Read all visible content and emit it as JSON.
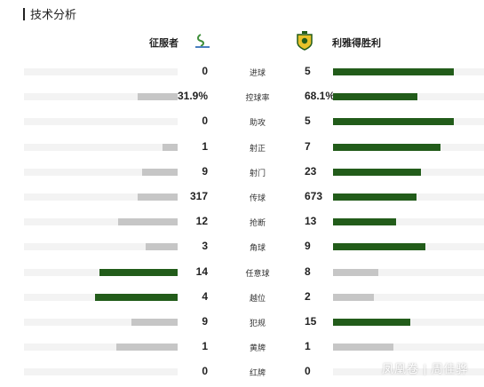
{
  "header": {
    "title": "技术分析"
  },
  "teams": {
    "home": {
      "name": "征服者"
    },
    "away": {
      "name": "利雅得胜利"
    }
  },
  "colors": {
    "green": "#225c1a",
    "grey": "#c6c6c6",
    "track": "#f3f3f3"
  },
  "stats": [
    {
      "label": "进球",
      "home": "0",
      "away": "5",
      "home_frac": 0.0,
      "away_frac": 0.8,
      "home_color": "grey",
      "away_color": "green"
    },
    {
      "label": "控球率",
      "home": "31.9%",
      "away": "68.1%",
      "home_frac": 0.26,
      "away_frac": 0.56,
      "home_color": "grey",
      "away_color": "green"
    },
    {
      "label": "助攻",
      "home": "0",
      "away": "5",
      "home_frac": 0.0,
      "away_frac": 0.8,
      "home_color": "grey",
      "away_color": "green"
    },
    {
      "label": "射正",
      "home": "1",
      "away": "7",
      "home_frac": 0.1,
      "away_frac": 0.71,
      "home_color": "grey",
      "away_color": "green"
    },
    {
      "label": "射门",
      "home": "9",
      "away": "23",
      "home_frac": 0.23,
      "away_frac": 0.58,
      "home_color": "grey",
      "away_color": "green"
    },
    {
      "label": "传球",
      "home": "317",
      "away": "673",
      "home_frac": 0.26,
      "away_frac": 0.55,
      "home_color": "grey",
      "away_color": "green"
    },
    {
      "label": "抢断",
      "home": "12",
      "away": "13",
      "home_frac": 0.39,
      "away_frac": 0.42,
      "home_color": "grey",
      "away_color": "green"
    },
    {
      "label": "角球",
      "home": "3",
      "away": "9",
      "home_frac": 0.21,
      "away_frac": 0.61,
      "home_color": "grey",
      "away_color": "green"
    },
    {
      "label": "任意球",
      "home": "14",
      "away": "8",
      "home_frac": 0.51,
      "away_frac": 0.3,
      "home_color": "green",
      "away_color": "grey"
    },
    {
      "label": "越位",
      "home": "4",
      "away": "2",
      "home_frac": 0.54,
      "away_frac": 0.27,
      "home_color": "green",
      "away_color": "grey"
    },
    {
      "label": "犯规",
      "home": "9",
      "away": "15",
      "home_frac": 0.3,
      "away_frac": 0.51,
      "home_color": "grey",
      "away_color": "green"
    },
    {
      "label": "黄牌",
      "home": "1",
      "away": "1",
      "home_frac": 0.4,
      "away_frac": 0.4,
      "home_color": "grey",
      "away_color": "grey"
    },
    {
      "label": "红牌",
      "home": "0",
      "away": "0",
      "home_frac": 0.0,
      "away_frac": 0.0,
      "home_color": "grey",
      "away_color": "grey"
    }
  ],
  "watermark": "凤凰卷 | 周佳骅"
}
